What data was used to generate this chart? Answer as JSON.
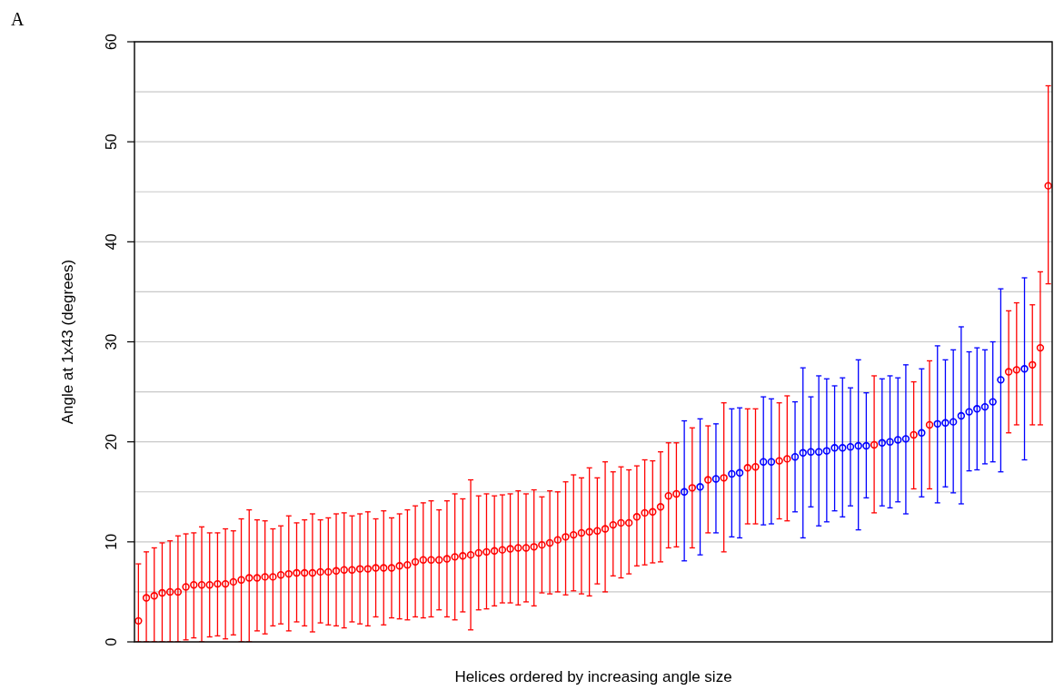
{
  "chart_data": {
    "type": "scatter",
    "xlabel": "Helices ordered by increasing angle size",
    "ylabel": "Angle at 1x43 (degrees)",
    "annotations": [
      "A"
    ],
    "categories": [
      null,
      null,
      null,
      null,
      null,
      null,
      null,
      null,
      null,
      null,
      null,
      null,
      null,
      null,
      null,
      null,
      null,
      null,
      null,
      null,
      null,
      null,
      null,
      null,
      null,
      null,
      null,
      null,
      null,
      null,
      null,
      null,
      null,
      null,
      null,
      null,
      null,
      null,
      null,
      null,
      null,
      null,
      null,
      null,
      null,
      null,
      null,
      null,
      null,
      null,
      null,
      null,
      null,
      null,
      null,
      null,
      null,
      null,
      null,
      null,
      null,
      null,
      null,
      null,
      null,
      null,
      null,
      null,
      null,
      null,
      null,
      null,
      null,
      null,
      null,
      null,
      null,
      null,
      null,
      null,
      null,
      null,
      null,
      null,
      null,
      null,
      null,
      null,
      null,
      null,
      null,
      null,
      null,
      null,
      null,
      null,
      null,
      null,
      null,
      null,
      null,
      null,
      null,
      null,
      null,
      null,
      null,
      null,
      null,
      null,
      null,
      null,
      null,
      null,
      null,
      null
    ],
    "values": [
      2.1,
      4.4,
      4.6,
      4.9,
      5.0,
      5.0,
      5.5,
      5.7,
      5.7,
      5.7,
      5.8,
      5.8,
      6.0,
      6.2,
      6.4,
      6.4,
      6.5,
      6.5,
      6.7,
      6.8,
      6.9,
      6.9,
      6.9,
      7.0,
      7.0,
      7.1,
      7.2,
      7.2,
      7.3,
      7.3,
      7.4,
      7.4,
      7.4,
      7.6,
      7.7,
      8.0,
      8.2,
      8.2,
      8.2,
      8.3,
      8.5,
      8.6,
      8.7,
      8.9,
      9.0,
      9.1,
      9.2,
      9.3,
      9.4,
      9.4,
      9.5,
      9.7,
      9.9,
      10.2,
      10.5,
      10.7,
      10.9,
      11.0,
      11.1,
      11.3,
      11.7,
      11.9,
      11.9,
      12.5,
      12.9,
      13.0,
      13.5,
      14.6,
      14.8,
      15.0,
      15.4,
      15.5,
      16.2,
      16.3,
      16.4,
      16.8,
      16.9,
      17.4,
      17.5,
      18.0,
      18.0,
      18.1,
      18.3,
      18.5,
      18.9,
      19.0,
      19.0,
      19.1,
      19.4,
      19.4,
      19.5,
      19.6,
      19.6,
      19.7,
      19.9,
      20.0,
      20.2,
      20.3,
      20.7,
      20.9,
      21.7,
      21.8,
      21.9,
      22.0,
      22.6,
      23.0,
      23.3,
      23.5,
      24.0,
      26.2,
      27.0,
      27.2,
      27.3,
      27.7,
      29.4,
      45.6
    ],
    "colors": [
      "#ff0000",
      "#ff0000",
      "#ff0000",
      "#ff0000",
      "#ff0000",
      "#ff0000",
      "#ff0000",
      "#ff0000",
      "#ff0000",
      "#ff0000",
      "#ff0000",
      "#ff0000",
      "#ff0000",
      "#ff0000",
      "#ff0000",
      "#ff0000",
      "#ff0000",
      "#ff0000",
      "#ff0000",
      "#ff0000",
      "#ff0000",
      "#ff0000",
      "#ff0000",
      "#ff0000",
      "#ff0000",
      "#ff0000",
      "#ff0000",
      "#ff0000",
      "#ff0000",
      "#ff0000",
      "#ff0000",
      "#ff0000",
      "#ff0000",
      "#ff0000",
      "#ff0000",
      "#ff0000",
      "#ff0000",
      "#ff0000",
      "#ff0000",
      "#ff0000",
      "#ff0000",
      "#ff0000",
      "#ff0000",
      "#ff0000",
      "#ff0000",
      "#ff0000",
      "#ff0000",
      "#ff0000",
      "#ff0000",
      "#ff0000",
      "#ff0000",
      "#ff0000",
      "#ff0000",
      "#ff0000",
      "#ff0000",
      "#ff0000",
      "#ff0000",
      "#ff0000",
      "#ff0000",
      "#ff0000",
      "#ff0000",
      "#ff0000",
      "#ff0000",
      "#ff0000",
      "#ff0000",
      "#ff0000",
      "#ff0000",
      "#ff0000",
      "#ff0000",
      "#0000ff",
      "#ff0000",
      "#0000ff",
      "#ff0000",
      "#0000ff",
      "#ff0000",
      "#0000ff",
      "#0000ff",
      "#ff0000",
      "#ff0000",
      "#0000ff",
      "#0000ff",
      "#ff0000",
      "#ff0000",
      "#0000ff",
      "#0000ff",
      "#0000ff",
      "#0000ff",
      "#0000ff",
      "#0000ff",
      "#0000ff",
      "#0000ff",
      "#0000ff",
      "#0000ff",
      "#ff0000",
      "#0000ff",
      "#0000ff",
      "#0000ff",
      "#0000ff",
      "#ff0000",
      "#0000ff",
      "#ff0000",
      "#0000ff",
      "#0000ff",
      "#0000ff",
      "#0000ff",
      "#0000ff",
      "#0000ff",
      "#0000ff",
      "#0000ff",
      "#0000ff",
      "#ff0000",
      "#ff0000",
      "#0000ff",
      "#ff0000",
      "#ff0000",
      "#ff0000"
    ],
    "errors": [
      [
        0,
        7.8
      ],
      [
        0,
        9.0
      ],
      [
        0,
        9.4
      ],
      [
        0,
        9.9
      ],
      [
        0,
        10.1
      ],
      [
        0,
        10.6
      ],
      [
        0.2,
        10.8
      ],
      [
        0.4,
        10.9
      ],
      [
        0,
        11.5
      ],
      [
        0.5,
        10.9
      ],
      [
        0.6,
        10.9
      ],
      [
        0.3,
        11.3
      ],
      [
        0.7,
        11.1
      ],
      [
        0,
        12.3
      ],
      [
        0,
        13.2
      ],
      [
        1.1,
        12.2
      ],
      [
        0.8,
        12.1
      ],
      [
        1.6,
        11.3
      ],
      [
        1.8,
        11.6
      ],
      [
        1.1,
        12.6
      ],
      [
        2.0,
        11.9
      ],
      [
        1.6,
        12.2
      ],
      [
        1.0,
        12.8
      ],
      [
        1.9,
        12.2
      ],
      [
        1.7,
        12.4
      ],
      [
        1.6,
        12.8
      ],
      [
        1.4,
        12.9
      ],
      [
        2.0,
        12.6
      ],
      [
        1.8,
        12.8
      ],
      [
        1.6,
        13.0
      ],
      [
        2.5,
        12.3
      ],
      [
        1.7,
        13.1
      ],
      [
        2.4,
        12.4
      ],
      [
        2.3,
        12.8
      ],
      [
        2.2,
        13.2
      ],
      [
        2.5,
        13.6
      ],
      [
        2.4,
        13.9
      ],
      [
        2.5,
        14.1
      ],
      [
        3.2,
        13.2
      ],
      [
        2.5,
        14.1
      ],
      [
        2.2,
        14.8
      ],
      [
        3.0,
        14.3
      ],
      [
        1.2,
        16.2
      ],
      [
        3.2,
        14.6
      ],
      [
        3.3,
        14.8
      ],
      [
        3.6,
        14.6
      ],
      [
        3.9,
        14.7
      ],
      [
        3.9,
        14.8
      ],
      [
        3.7,
        15.1
      ],
      [
        4.0,
        14.8
      ],
      [
        3.6,
        15.2
      ],
      [
        4.9,
        14.5
      ],
      [
        4.8,
        15.1
      ],
      [
        5.0,
        15.0
      ],
      [
        4.7,
        16.0
      ],
      [
        5.1,
        16.7
      ],
      [
        4.8,
        16.4
      ],
      [
        4.6,
        17.4
      ],
      [
        5.8,
        16.4
      ],
      [
        5.0,
        18.0
      ],
      [
        6.6,
        17.0
      ],
      [
        6.4,
        17.5
      ],
      [
        6.8,
        17.2
      ],
      [
        7.6,
        17.6
      ],
      [
        7.7,
        18.2
      ],
      [
        7.9,
        18.1
      ],
      [
        8.0,
        19.0
      ],
      [
        9.4,
        19.9
      ],
      [
        9.5,
        19.9
      ],
      [
        8.1,
        22.1
      ],
      [
        9.4,
        21.4
      ],
      [
        8.7,
        22.3
      ],
      [
        10.9,
        21.6
      ],
      [
        10.9,
        21.8
      ],
      [
        9.0,
        23.9
      ],
      [
        10.5,
        23.3
      ],
      [
        10.4,
        23.4
      ],
      [
        11.8,
        23.3
      ],
      [
        11.8,
        23.3
      ],
      [
        11.7,
        24.5
      ],
      [
        11.8,
        24.3
      ],
      [
        12.3,
        23.9
      ],
      [
        12.1,
        24.6
      ],
      [
        13.0,
        24.0
      ],
      [
        10.4,
        27.4
      ],
      [
        13.5,
        24.5
      ],
      [
        11.6,
        26.6
      ],
      [
        12.0,
        26.3
      ],
      [
        13.1,
        25.6
      ],
      [
        12.5,
        26.4
      ],
      [
        13.6,
        25.4
      ],
      [
        11.2,
        28.2
      ],
      [
        14.4,
        24.9
      ],
      [
        12.9,
        26.6
      ],
      [
        13.6,
        26.3
      ],
      [
        13.4,
        26.6
      ],
      [
        14.0,
        26.4
      ],
      [
        12.8,
        27.7
      ],
      [
        15.3,
        26.0
      ],
      [
        14.5,
        27.3
      ],
      [
        15.3,
        28.1
      ],
      [
        13.9,
        29.6
      ],
      [
        15.5,
        28.2
      ],
      [
        14.9,
        29.2
      ],
      [
        13.8,
        31.5
      ],
      [
        17.1,
        29.0
      ],
      [
        17.2,
        29.4
      ],
      [
        17.8,
        29.2
      ],
      [
        18.0,
        30.0
      ],
      [
        17.0,
        35.3
      ],
      [
        20.9,
        33.1
      ],
      [
        21.7,
        33.9
      ],
      [
        18.2,
        36.4
      ],
      [
        21.7,
        33.7
      ],
      [
        21.7,
        37.0
      ],
      [
        35.8,
        55.6
      ]
    ],
    "ylim": [
      0,
      60
    ],
    "yticks": [
      0,
      {
        "value": 5,
        "label": null
      },
      10,
      {
        "value": 15,
        "label": null
      },
      20,
      {
        "value": 25,
        "label": null
      },
      30,
      {
        "value": 35,
        "label": null
      },
      40,
      {
        "value": 45,
        "label": null
      },
      50,
      {
        "value": 55,
        "label": null
      },
      60
    ],
    "grid": "y",
    "marker": "circle",
    "tick_labels": "y"
  }
}
